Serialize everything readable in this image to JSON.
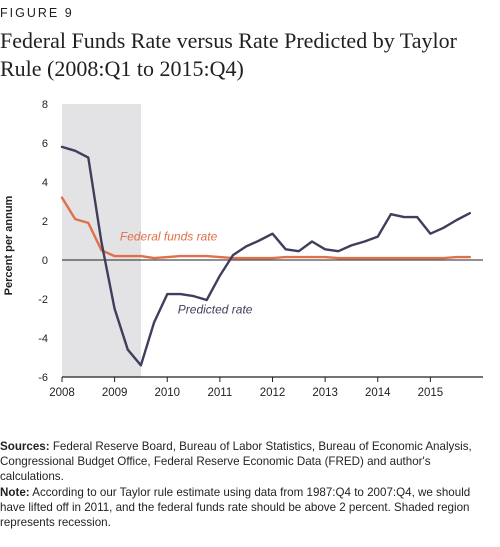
{
  "figure_label": "FIGURE 9",
  "title": "Federal Funds Rate versus Rate Predicted by Taylor Rule (2008:Q1 to 2015:Q4)",
  "notes": {
    "sources_label": "Sources:",
    "sources_text": " Federal Reserve Board, Bureau of Labor Statistics, Bureau of Economic Analysis,  Congressional Budget Office, Federal Reserve Economic Data (FRED) and author's calculations.",
    "note_label": "Note:",
    "note_text": " According to our Taylor rule estimate using data from 1987:Q4 to 2007:Q4, we should have lifted off in 2011, and the federal funds rate should be above 2 percent. Shaded region represents recession."
  },
  "chart_data": {
    "type": "line",
    "ylabel": "Percent per annum",
    "ylim": [
      -6,
      8
    ],
    "yticks": [
      8,
      6,
      4,
      2,
      0,
      -2,
      -4,
      -6
    ],
    "xlim": [
      2008,
      2016
    ],
    "xticks": [
      "2008",
      "2009",
      "2010",
      "2011",
      "2012",
      "2013",
      "2014",
      "2015"
    ],
    "grid": false,
    "recession_shading": [
      2008.0,
      2009.5
    ],
    "colors": {
      "federal_funds": "#e0704a",
      "predicted": "#3e3f5c",
      "shading": "#e3e3e5"
    },
    "x": [
      2008.0,
      2008.25,
      2008.5,
      2008.75,
      2009.0,
      2009.25,
      2009.5,
      2009.75,
      2010.0,
      2010.25,
      2010.5,
      2010.75,
      2011.0,
      2011.25,
      2011.5,
      2011.75,
      2012.0,
      2012.25,
      2012.5,
      2012.75,
      2013.0,
      2013.25,
      2013.5,
      2013.75,
      2014.0,
      2014.25,
      2014.5,
      2014.75,
      2015.0,
      2015.25,
      2015.5,
      2015.75
    ],
    "series": [
      {
        "name": "Federal funds rate",
        "label_pos": [
          2009.1,
          1.0
        ],
        "values": [
          3.2,
          2.1,
          1.9,
          0.5,
          0.2,
          0.2,
          0.2,
          0.1,
          0.15,
          0.2,
          0.2,
          0.2,
          0.15,
          0.1,
          0.1,
          0.1,
          0.1,
          0.15,
          0.15,
          0.15,
          0.15,
          0.1,
          0.1,
          0.1,
          0.1,
          0.1,
          0.1,
          0.1,
          0.1,
          0.1,
          0.15,
          0.15
        ]
      },
      {
        "name": "Predicted rate",
        "label_pos": [
          2010.2,
          -2.75
        ],
        "values": [
          5.8,
          5.6,
          5.25,
          0.9,
          -2.5,
          -4.6,
          -5.4,
          -3.2,
          -1.75,
          -1.75,
          -1.85,
          -2.05,
          -0.8,
          0.25,
          0.7,
          1.0,
          1.35,
          0.55,
          0.45,
          0.95,
          0.55,
          0.45,
          0.75,
          0.95,
          1.2,
          2.35,
          2.2,
          2.2,
          1.35,
          1.65,
          2.05,
          2.4
        ]
      }
    ]
  }
}
